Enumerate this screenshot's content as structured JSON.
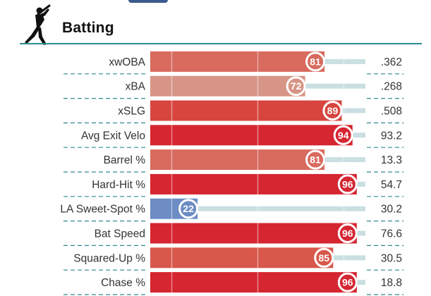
{
  "section": {
    "title": "Batting",
    "icon": "batter-silhouette-icon"
  },
  "colors": {
    "title_rule": "#2d8a94",
    "row_divider": "#2d8a94",
    "track": "#c9dfe2",
    "marker_border": "#ffffff"
  },
  "chart_data": {
    "type": "bar",
    "orientation": "horizontal",
    "title": "Batting",
    "xlim": [
      0,
      100
    ],
    "reference_lines": [
      10,
      50,
      90
    ],
    "grid": false,
    "categories": [
      "xwOBA",
      "xBA",
      "xSLG",
      "Avg Exit Velo",
      "Barrel %",
      "Hard-Hit %",
      "LA Sweet-Spot %",
      "Bat Speed",
      "Squared-Up %",
      "Chase %"
    ],
    "series": [
      {
        "values": [
          81,
          72,
          89,
          94,
          81,
          96,
          22,
          96,
          85,
          96
        ],
        "colors": [
          "#d86a5e",
          "#d79587",
          "#d8453f",
          "#d52632",
          "#d86a5e",
          "#d52632",
          "#6d8cc4",
          "#d52632",
          "#d8584b",
          "#d52632"
        ]
      }
    ],
    "stat_values": [
      ".362",
      ".268",
      ".508",
      "93.2",
      "13.3",
      "54.7",
      "30.2",
      "76.6",
      "30.5",
      "18.8"
    ]
  }
}
